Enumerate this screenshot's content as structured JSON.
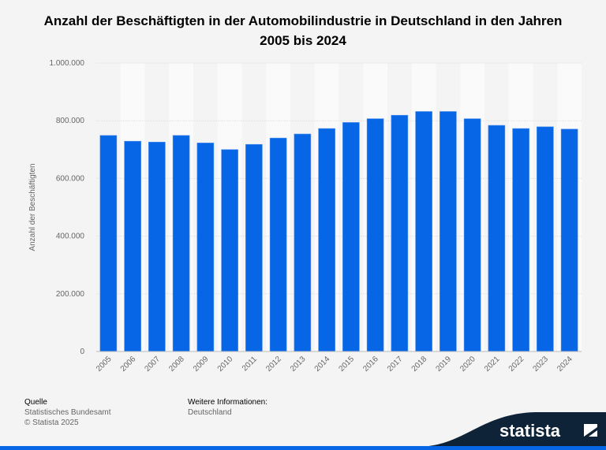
{
  "title": "Anzahl der Beschäftigten in der Automobilindustrie in Deutschland in den Jahren 2005 bis 2024",
  "chart_data": {
    "type": "bar",
    "title": "Anzahl der Beschäftigten in der Automobilindustrie in Deutschland in den Jahren 2005 bis 2024",
    "xlabel": "",
    "ylabel": "Anzahl der Beschäftigten",
    "ylim": [
      0,
      1000000
    ],
    "yticks": [
      0,
      200000,
      400000,
      600000,
      800000,
      1000000
    ],
    "ytick_labels": [
      "0",
      "200.000",
      "400.000",
      "600.000",
      "800.000",
      "1.000.000"
    ],
    "grid": true,
    "categories": [
      "2005",
      "2006",
      "2007",
      "2008",
      "2009",
      "2010",
      "2011",
      "2012",
      "2013",
      "2014",
      "2015",
      "2016",
      "2017",
      "2018",
      "2019",
      "2020",
      "2021",
      "2022",
      "2023",
      "2024"
    ],
    "values": [
      749000,
      729000,
      726000,
      749000,
      723000,
      700000,
      718000,
      740000,
      754000,
      773000,
      794000,
      807000,
      819000,
      832000,
      832000,
      807000,
      784000,
      773000,
      779000,
      771000
    ],
    "bar_color": "#0666e5"
  },
  "footer": {
    "source_heading": "Quelle",
    "source": "Statistisches Bundesamt",
    "copyright": "© Statista 2025",
    "info_heading": "Weitere Informationen:",
    "info": "Deutschland"
  },
  "logo": "statista"
}
